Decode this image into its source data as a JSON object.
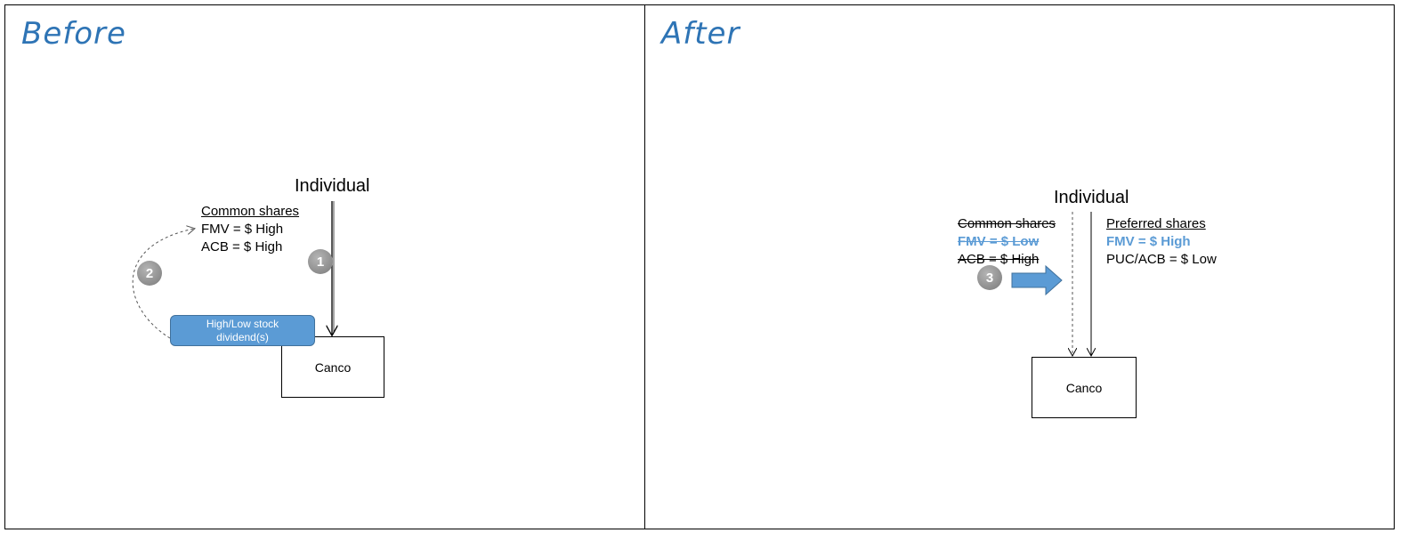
{
  "before": {
    "title": "Before",
    "individual": "Individual",
    "common_shares": "Common shares",
    "fmv": "FMV = $ High",
    "acb": "ACB = $  High",
    "step1": "1",
    "step2": "2",
    "stock_dividend": "High/Low stock dividend(s)",
    "canco": "Canco"
  },
  "after": {
    "title": "After",
    "individual": "Individual",
    "common_shares": "Common shares",
    "fmv_common": "FMV = $ Low",
    "acb_common": "ACB = $  High",
    "preferred_shares": "Preferred shares",
    "fmv_pref": "FMV =  $ High",
    "puc_acb": "PUC/ACB = $ Low",
    "step3": "3",
    "canco": "Canco"
  },
  "colors": {
    "title": "#2e74b5",
    "accent": "#5b9bd5",
    "step": "#8c8c8c"
  }
}
